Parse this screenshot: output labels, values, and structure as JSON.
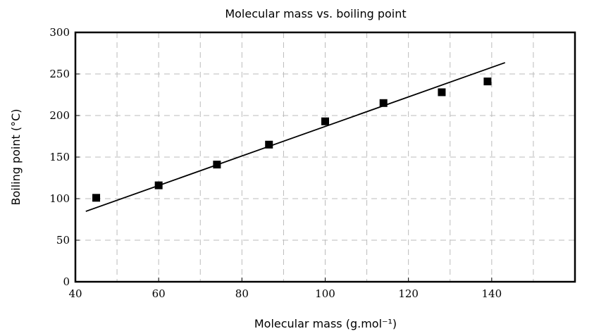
{
  "chart_data": {
    "type": "scatter",
    "title": "Molecular mass vs. boiling point",
    "xlabel": "Molecular mass (g.mol⁻¹)",
    "ylabel": "Boiling point (°C)",
    "xlim": [
      40,
      160
    ],
    "ylim": [
      0,
      300
    ],
    "xticks": [
      40,
      60,
      80,
      100,
      120,
      140
    ],
    "yticks": [
      0,
      50,
      100,
      150,
      200,
      250,
      300
    ],
    "grid": true,
    "points": [
      {
        "x": 45,
        "y": 101
      },
      {
        "x": 60,
        "y": 116
      },
      {
        "x": 74,
        "y": 141
      },
      {
        "x": 86.5,
        "y": 165
      },
      {
        "x": 100,
        "y": 193
      },
      {
        "x": 114,
        "y": 215
      },
      {
        "x": 128,
        "y": 228
      },
      {
        "x": 139,
        "y": 241
      }
    ],
    "fit_line": {
      "x": [
        42.5,
        143.2
      ],
      "y": [
        84.7,
        263.6
      ]
    },
    "colors": {
      "marker": "#000000",
      "line": "#000000",
      "grid": "#bbbbbb"
    }
  }
}
